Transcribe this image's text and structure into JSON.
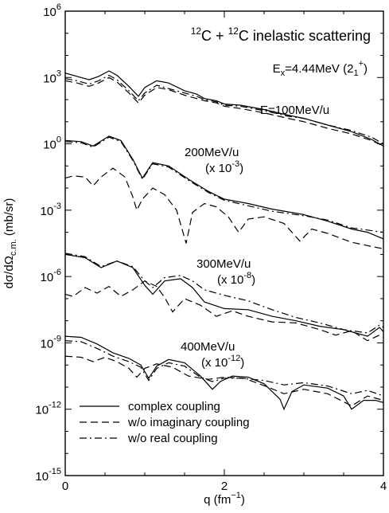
{
  "chart_data": {
    "type": "line",
    "title": {
      "base1": "12",
      "t1": "C + ",
      "base2": "12",
      "t2": "C inelastic scattering"
    },
    "excitation": {
      "prefix": "E",
      "sub": "x",
      "text": "=4.44MeV (2",
      "sub2": "1",
      "sup": "+",
      "suffix": ")"
    },
    "xlabel": {
      "main": "q (fm",
      "sup": "−1",
      "close": ")"
    },
    "ylabel": {
      "main": "dσ/dΩ",
      "sub": "c.m.",
      "unit": " (mb/sr)"
    },
    "xlim": [
      0,
      4
    ],
    "ylim_log10": [
      -15,
      6
    ],
    "xticks": [
      {
        "v": 0,
        "label": "0"
      },
      {
        "v": 2,
        "label": "2"
      },
      {
        "v": 4,
        "label": "4"
      }
    ],
    "yticks": [
      {
        "e": 6,
        "base": "10",
        "exp": "6"
      },
      {
        "e": 3,
        "base": "10",
        "exp": "3"
      },
      {
        "e": 0,
        "base": "10",
        "exp": "0"
      },
      {
        "e": -3,
        "base": "10",
        "exp": "-3"
      },
      {
        "e": -6,
        "base": "10",
        "exp": "-6"
      },
      {
        "e": -9,
        "base": "10",
        "exp": "-9"
      },
      {
        "e": -12,
        "base": "10",
        "exp": "-12"
      },
      {
        "e": -15,
        "base": "10",
        "exp": "-15"
      }
    ],
    "energy_labels": [
      {
        "energy": "E=100MeV/u",
        "scale": null,
        "x": 2.45,
        "y": 1.35
      },
      {
        "energy": "200MeV/u",
        "scale": {
          "pre": "(x 10",
          "exp": "-3",
          "post": ")"
        },
        "x": 1.5,
        "y": -0.55
      },
      {
        "energy": "300MeV/u",
        "scale": {
          "pre": "(x 10",
          "exp": "-8",
          "post": ")"
        },
        "x": 1.65,
        "y": -5.6
      },
      {
        "energy": "400MeV/u",
        "scale": {
          "pre": "(x 10",
          "exp": "-12",
          "post": ")"
        },
        "x": 1.45,
        "y": -9.35
      }
    ],
    "legend": {
      "position": "bottom-left",
      "entries": [
        {
          "label": "complex coupling",
          "style": "solid"
        },
        {
          "label": "w/o imaginary coupling",
          "style": "dashed"
        },
        {
          "label": "w/o real coupling",
          "style": "dashdot"
        }
      ]
    },
    "series": [
      {
        "group": "100MeV/u",
        "style": "solid",
        "points": [
          [
            0,
            3.2
          ],
          [
            0.15,
            3.05
          ],
          [
            0.3,
            2.9
          ],
          [
            0.42,
            3.05
          ],
          [
            0.55,
            3.3
          ],
          [
            0.65,
            3.1
          ],
          [
            0.8,
            2.6
          ],
          [
            0.92,
            2.15
          ],
          [
            1.0,
            2.55
          ],
          [
            1.15,
            2.85
          ],
          [
            1.3,
            2.75
          ],
          [
            1.5,
            2.4
          ],
          [
            1.65,
            2.25
          ],
          [
            1.75,
            2.05
          ],
          [
            1.9,
            1.95
          ],
          [
            2.0,
            1.8
          ],
          [
            2.2,
            1.75
          ],
          [
            2.5,
            1.55
          ],
          [
            2.8,
            1.3
          ],
          [
            3.0,
            1.15
          ],
          [
            3.3,
            0.85
          ],
          [
            3.6,
            0.55
          ],
          [
            3.85,
            0.2
          ],
          [
            4.0,
            -0.1
          ]
        ]
      },
      {
        "group": "100MeV/u",
        "style": "dashed",
        "points": [
          [
            0,
            2.85
          ],
          [
            0.15,
            2.75
          ],
          [
            0.3,
            2.6
          ],
          [
            0.42,
            2.75
          ],
          [
            0.55,
            3.0
          ],
          [
            0.65,
            2.8
          ],
          [
            0.8,
            2.3
          ],
          [
            0.92,
            1.85
          ],
          [
            1.0,
            2.2
          ],
          [
            1.15,
            2.55
          ],
          [
            1.3,
            2.45
          ],
          [
            1.5,
            2.2
          ],
          [
            1.65,
            2.05
          ],
          [
            1.75,
            1.95
          ],
          [
            1.9,
            1.85
          ],
          [
            2.0,
            1.7
          ],
          [
            2.2,
            1.6
          ],
          [
            2.5,
            1.4
          ],
          [
            2.8,
            1.15
          ],
          [
            3.0,
            1.0
          ],
          [
            3.3,
            0.7
          ],
          [
            3.6,
            0.45
          ],
          [
            3.85,
            0.15
          ],
          [
            4.0,
            -0.1
          ]
        ]
      },
      {
        "group": "100MeV/u",
        "style": "dashdot",
        "points": [
          [
            0,
            2.95
          ],
          [
            0.15,
            2.85
          ],
          [
            0.3,
            2.7
          ],
          [
            0.42,
            2.85
          ],
          [
            0.55,
            3.1
          ],
          [
            0.65,
            2.9
          ],
          [
            0.8,
            2.4
          ],
          [
            0.92,
            1.95
          ],
          [
            1.0,
            2.3
          ],
          [
            1.15,
            2.65
          ],
          [
            1.3,
            2.5
          ],
          [
            1.5,
            2.3
          ],
          [
            1.65,
            2.15
          ],
          [
            1.75,
            2.0
          ],
          [
            1.9,
            1.9
          ],
          [
            2.0,
            1.75
          ],
          [
            2.2,
            1.7
          ],
          [
            2.5,
            1.5
          ],
          [
            2.8,
            1.25
          ],
          [
            3.0,
            1.15
          ],
          [
            3.3,
            0.85
          ],
          [
            3.6,
            0.6
          ],
          [
            3.85,
            0.3
          ],
          [
            4.0,
            0.0
          ]
        ]
      },
      {
        "group": "200MeV/u",
        "style": "solid",
        "points": [
          [
            0,
            0.15
          ],
          [
            0.2,
            0.1
          ],
          [
            0.35,
            -0.1
          ],
          [
            0.55,
            0.35
          ],
          [
            0.7,
            0.15
          ],
          [
            0.85,
            -0.7
          ],
          [
            0.97,
            -1.55
          ],
          [
            1.1,
            -0.85
          ],
          [
            1.3,
            -1.0
          ],
          [
            1.55,
            -1.6
          ],
          [
            1.8,
            -2.15
          ],
          [
            2.0,
            -2.5
          ],
          [
            2.3,
            -2.7
          ],
          [
            2.6,
            -2.95
          ],
          [
            3.0,
            -3.2
          ],
          [
            3.3,
            -3.5
          ],
          [
            3.6,
            -3.85
          ],
          [
            3.8,
            -4.0
          ],
          [
            4.0,
            -4.3
          ]
        ]
      },
      {
        "group": "200MeV/u",
        "style": "dashed",
        "points": [
          [
            0,
            -1.55
          ],
          [
            0.1,
            -1.45
          ],
          [
            0.25,
            -1.5
          ],
          [
            0.35,
            -1.9
          ],
          [
            0.45,
            -1.5
          ],
          [
            0.6,
            -1.1
          ],
          [
            0.75,
            -1.5
          ],
          [
            0.85,
            -2.4
          ],
          [
            0.9,
            -3.0
          ],
          [
            0.97,
            -2.5
          ],
          [
            1.1,
            -2.0
          ],
          [
            1.25,
            -2.3
          ],
          [
            1.4,
            -3.0
          ],
          [
            1.52,
            -4.5
          ],
          [
            1.6,
            -3.1
          ],
          [
            1.75,
            -2.7
          ],
          [
            1.9,
            -2.85
          ],
          [
            2.05,
            -3.3
          ],
          [
            2.18,
            -4.0
          ],
          [
            2.3,
            -3.4
          ],
          [
            2.5,
            -3.3
          ],
          [
            2.75,
            -3.6
          ],
          [
            2.95,
            -4.4
          ],
          [
            3.1,
            -3.85
          ],
          [
            3.3,
            -4.05
          ],
          [
            3.6,
            -4.45
          ],
          [
            3.8,
            -4.6
          ],
          [
            4.0,
            -4.75
          ]
        ]
      },
      {
        "group": "200MeV/u",
        "style": "dashdot",
        "points": [
          [
            0,
            0.1
          ],
          [
            0.2,
            0.05
          ],
          [
            0.35,
            -0.15
          ],
          [
            0.55,
            0.3
          ],
          [
            0.7,
            0.1
          ],
          [
            0.85,
            -0.75
          ],
          [
            0.97,
            -1.6
          ],
          [
            1.1,
            -0.9
          ],
          [
            1.3,
            -1.05
          ],
          [
            1.55,
            -1.65
          ],
          [
            1.8,
            -2.2
          ],
          [
            2.0,
            -2.55
          ],
          [
            2.3,
            -2.8
          ],
          [
            2.6,
            -3.05
          ],
          [
            3.0,
            -3.25
          ],
          [
            3.3,
            -3.45
          ],
          [
            3.6,
            -3.8
          ],
          [
            3.8,
            -3.9
          ],
          [
            4.0,
            -4.0
          ]
        ]
      },
      {
        "group": "300MeV/u",
        "style": "solid",
        "points": [
          [
            0,
            -5.0
          ],
          [
            0.25,
            -5.15
          ],
          [
            0.45,
            -5.6
          ],
          [
            0.65,
            -5.3
          ],
          [
            0.85,
            -5.6
          ],
          [
            1.0,
            -6.4
          ],
          [
            1.1,
            -6.8
          ],
          [
            1.25,
            -6.2
          ],
          [
            1.45,
            -6.1
          ],
          [
            1.6,
            -6.5
          ],
          [
            1.75,
            -7.15
          ],
          [
            2.0,
            -7.45
          ],
          [
            2.3,
            -7.5
          ],
          [
            2.6,
            -7.8
          ],
          [
            2.9,
            -8.0
          ],
          [
            3.2,
            -8.25
          ],
          [
            3.5,
            -8.4
          ],
          [
            3.8,
            -8.7
          ],
          [
            3.95,
            -8.3
          ],
          [
            4.0,
            -8.5
          ]
        ]
      },
      {
        "group": "300MeV/u",
        "style": "dashed",
        "points": [
          [
            0,
            -6.8
          ],
          [
            0.1,
            -6.9
          ],
          [
            0.25,
            -6.5
          ],
          [
            0.4,
            -6.75
          ],
          [
            0.55,
            -6.45
          ],
          [
            0.7,
            -6.9
          ],
          [
            0.85,
            -6.6
          ],
          [
            1.0,
            -6.2
          ],
          [
            1.15,
            -6.45
          ],
          [
            1.25,
            -6.95
          ],
          [
            1.35,
            -7.6
          ],
          [
            1.5,
            -7.0
          ],
          [
            1.7,
            -7.3
          ],
          [
            1.9,
            -7.8
          ],
          [
            2.1,
            -7.55
          ],
          [
            2.3,
            -7.8
          ],
          [
            2.6,
            -8.05
          ],
          [
            2.9,
            -8.1
          ],
          [
            3.2,
            -8.4
          ],
          [
            3.4,
            -8.65
          ],
          [
            3.6,
            -8.45
          ],
          [
            3.8,
            -8.9
          ],
          [
            3.95,
            -8.65
          ],
          [
            4.0,
            -8.75
          ]
        ]
      },
      {
        "group": "300MeV/u",
        "style": "dashdot",
        "points": [
          [
            0,
            -4.95
          ],
          [
            0.25,
            -5.1
          ],
          [
            0.45,
            -5.55
          ],
          [
            0.65,
            -5.3
          ],
          [
            0.85,
            -5.55
          ],
          [
            1.0,
            -6.2
          ],
          [
            1.1,
            -6.5
          ],
          [
            1.25,
            -6.05
          ],
          [
            1.45,
            -5.95
          ],
          [
            1.6,
            -6.2
          ],
          [
            1.75,
            -6.6
          ],
          [
            2.0,
            -6.85
          ],
          [
            2.3,
            -7.1
          ],
          [
            2.6,
            -7.5
          ],
          [
            2.9,
            -7.85
          ],
          [
            3.2,
            -8.1
          ],
          [
            3.5,
            -8.4
          ],
          [
            3.8,
            -8.55
          ],
          [
            3.95,
            -8.2
          ],
          [
            4.0,
            -8.3
          ]
        ]
      },
      {
        "group": "400MeV/u",
        "style": "solid",
        "points": [
          [
            0,
            -8.7
          ],
          [
            0.2,
            -8.75
          ],
          [
            0.4,
            -9.05
          ],
          [
            0.6,
            -9.45
          ],
          [
            0.8,
            -9.7
          ],
          [
            0.95,
            -10.0
          ],
          [
            1.05,
            -10.6
          ],
          [
            1.15,
            -10.05
          ],
          [
            1.3,
            -9.75
          ],
          [
            1.5,
            -9.9
          ],
          [
            1.7,
            -10.5
          ],
          [
            1.85,
            -11.1
          ],
          [
            1.95,
            -10.75
          ],
          [
            2.1,
            -10.5
          ],
          [
            2.3,
            -10.55
          ],
          [
            2.5,
            -10.85
          ],
          [
            2.7,
            -11.55
          ],
          [
            2.75,
            -12.0
          ],
          [
            2.85,
            -11.2
          ],
          [
            3.0,
            -10.9
          ],
          [
            3.3,
            -11.05
          ],
          [
            3.5,
            -11.4
          ],
          [
            3.6,
            -12.0
          ],
          [
            3.75,
            -11.6
          ],
          [
            3.9,
            -11.6
          ],
          [
            4.0,
            -11.7
          ]
        ]
      },
      {
        "group": "400MeV/u",
        "style": "dashed",
        "points": [
          [
            0,
            -9.6
          ],
          [
            0.2,
            -9.65
          ],
          [
            0.35,
            -9.85
          ],
          [
            0.5,
            -9.65
          ],
          [
            0.65,
            -9.85
          ],
          [
            0.8,
            -10.15
          ],
          [
            0.9,
            -10.55
          ],
          [
            1.0,
            -10.15
          ],
          [
            1.15,
            -9.95
          ],
          [
            1.35,
            -10.1
          ],
          [
            1.55,
            -10.5
          ],
          [
            1.8,
            -10.65
          ],
          [
            2.0,
            -10.55
          ],
          [
            2.25,
            -10.6
          ],
          [
            2.55,
            -11.0
          ],
          [
            2.75,
            -11.3
          ],
          [
            3.0,
            -11.1
          ],
          [
            3.3,
            -11.3
          ],
          [
            3.6,
            -11.85
          ],
          [
            3.8,
            -11.4
          ],
          [
            4.0,
            -11.6
          ]
        ]
      },
      {
        "group": "400MeV/u",
        "style": "dashdot",
        "points": [
          [
            0,
            -8.9
          ],
          [
            0.2,
            -8.95
          ],
          [
            0.4,
            -9.25
          ],
          [
            0.6,
            -9.6
          ],
          [
            0.8,
            -9.85
          ],
          [
            0.95,
            -10.1
          ],
          [
            1.05,
            -10.7
          ],
          [
            1.15,
            -10.15
          ],
          [
            1.3,
            -9.9
          ],
          [
            1.5,
            -10.05
          ],
          [
            1.7,
            -10.55
          ],
          [
            1.85,
            -10.75
          ],
          [
            2.0,
            -10.6
          ],
          [
            2.2,
            -10.6
          ],
          [
            2.5,
            -10.7
          ],
          [
            2.75,
            -10.9
          ],
          [
            3.0,
            -10.8
          ],
          [
            3.3,
            -10.95
          ],
          [
            3.6,
            -11.3
          ],
          [
            3.8,
            -11.15
          ],
          [
            4.0,
            -11.4
          ]
        ]
      }
    ]
  }
}
